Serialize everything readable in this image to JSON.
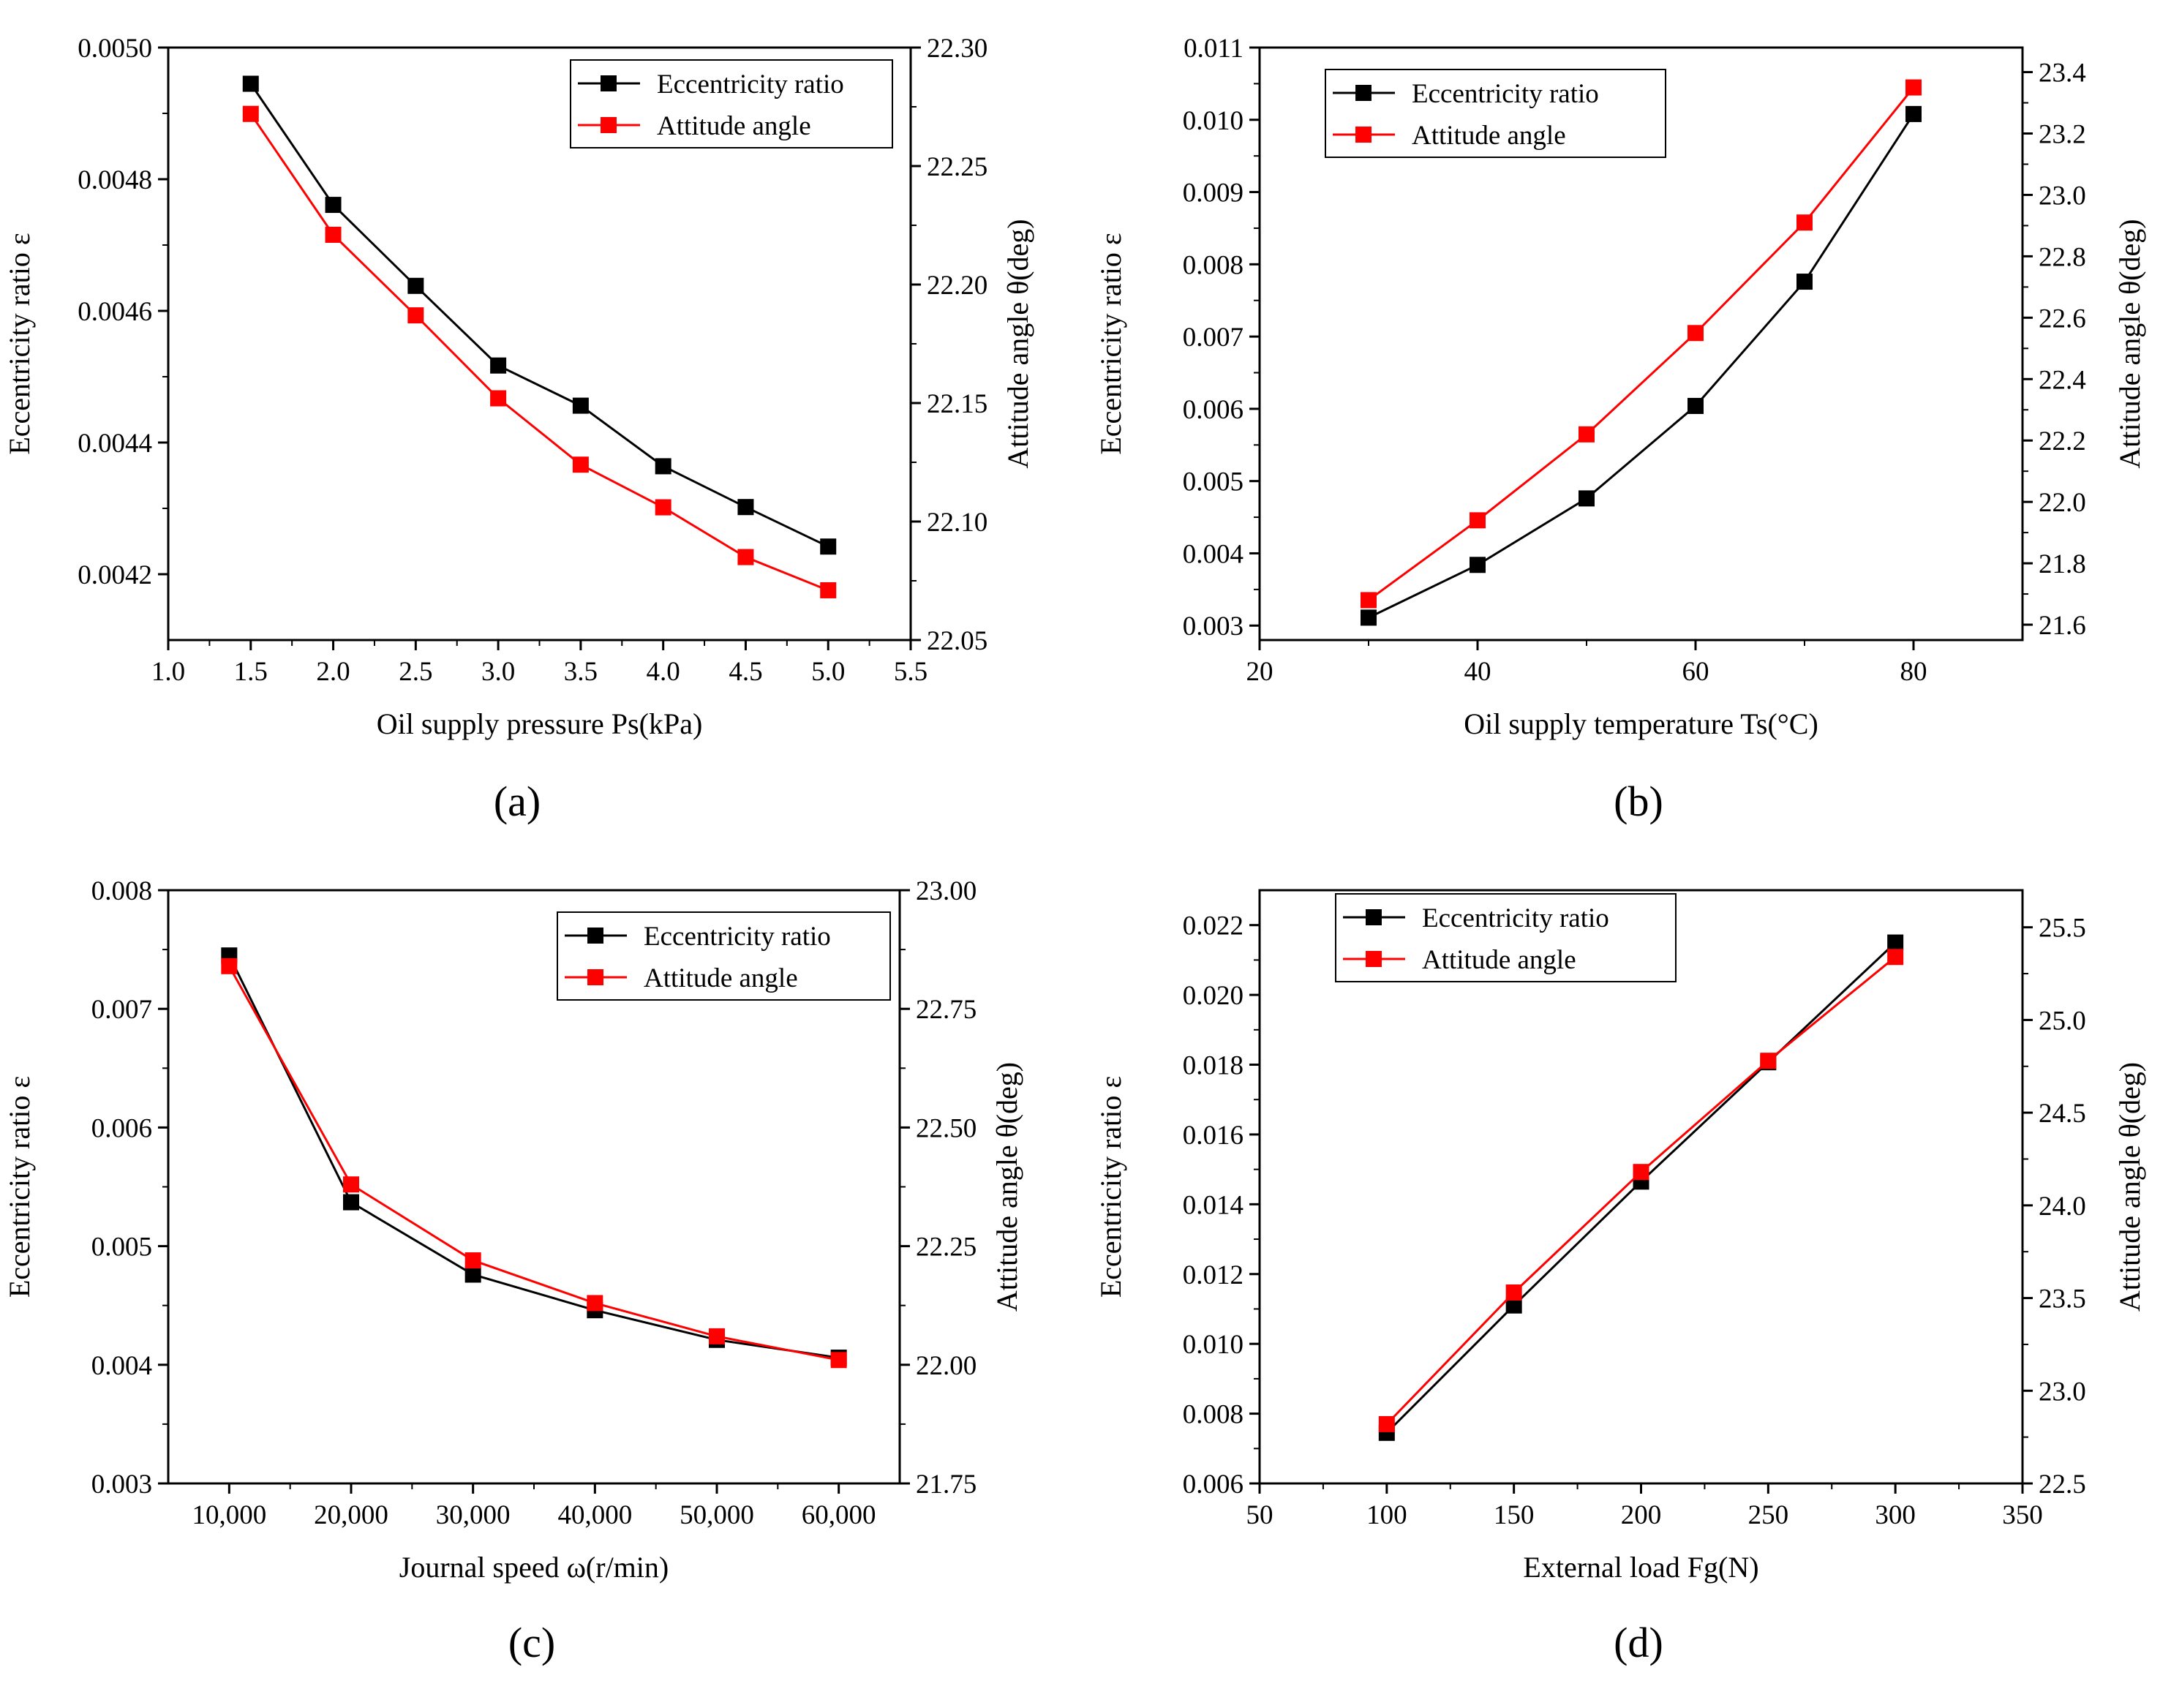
{
  "colors": {
    "eccentricity": "#000000",
    "attitude": "#ff0000"
  },
  "chart_data": [
    {
      "id": "a",
      "type": "line",
      "panel_label": "(a)",
      "legend_position": "top-right",
      "xlabel": "Oil supply pressure Ps(kPa)",
      "ylabel_left": "Eccentricity ratio ε",
      "ylabel_right": "Attitude angle θ(deg)",
      "x_ticks": [
        1.0,
        1.5,
        2.0,
        2.5,
        3.0,
        3.5,
        4.0,
        4.5,
        5.0,
        5.5
      ],
      "x_tick_labels": [
        "1.0",
        "1.5",
        "2.0",
        "2.5",
        "3.0",
        "3.5",
        "4.0",
        "4.5",
        "5.0",
        "5.5"
      ],
      "xlim": [
        1.0,
        5.5
      ],
      "yL_ticks": [
        0.0042,
        0.0044,
        0.0046,
        0.0048,
        0.005
      ],
      "yL_tick_labels": [
        "0.0042",
        "0.0044",
        "0.0046",
        "0.0048",
        "0.0050"
      ],
      "ylim_left": [
        0.0041,
        0.005
      ],
      "yR_ticks": [
        22.05,
        22.1,
        22.15,
        22.2,
        22.25,
        22.3
      ],
      "yR_tick_labels": [
        "22.05",
        "22.10",
        "22.15",
        "22.20",
        "22.25",
        "22.30"
      ],
      "ylim_right": [
        22.05,
        22.3
      ],
      "x": [
        1.5,
        2.0,
        2.5,
        3.0,
        3.5,
        4.0,
        4.5,
        5.0
      ],
      "series": [
        {
          "name": "Eccentricity ratio",
          "axis": "left",
          "values": [
            0.004945,
            0.004761,
            0.004638,
            0.004517,
            0.004456,
            0.004364,
            0.004302,
            0.004242
          ]
        },
        {
          "name": "Attitude angle",
          "axis": "right",
          "values": [
            22.272,
            22.221,
            22.187,
            22.152,
            22.124,
            22.106,
            22.085,
            22.071
          ]
        }
      ]
    },
    {
      "id": "b",
      "type": "line",
      "panel_label": "(b)",
      "legend_position": "top-left",
      "xlabel": "Oil supply temperature Ts(°C)",
      "ylabel_left": "Eccentricity ratio ε",
      "ylabel_right": "Attitude angle θ(deg)",
      "x_ticks": [
        20,
        40,
        60,
        80
      ],
      "x_tick_labels": [
        "20",
        "40",
        "60",
        "80"
      ],
      "xlim": [
        20,
        90
      ],
      "yL_ticks": [
        0.003,
        0.004,
        0.005,
        0.006,
        0.007,
        0.008,
        0.009,
        0.01,
        0.011
      ],
      "yL_tick_labels": [
        "0.003",
        "0.004",
        "0.005",
        "0.006",
        "0.007",
        "0.008",
        "0.009",
        "0.010",
        "0.011"
      ],
      "ylim_left": [
        0.0028,
        0.011
      ],
      "yR_ticks": [
        21.6,
        21.8,
        22.0,
        22.2,
        22.4,
        22.6,
        22.8,
        23.0,
        23.2,
        23.4
      ],
      "yR_tick_labels": [
        "21.6",
        "21.8",
        "22.0",
        "22.2",
        "22.4",
        "22.6",
        "22.8",
        "23.0",
        "23.2",
        "23.4"
      ],
      "ylim_right": [
        21.55,
        23.48
      ],
      "x": [
        30,
        40,
        50,
        60,
        70,
        80
      ],
      "series": [
        {
          "name": "Eccentricity ratio",
          "axis": "left",
          "values": [
            0.00311,
            0.00384,
            0.00476,
            0.00604,
            0.00776,
            0.01008
          ]
        },
        {
          "name": "Attitude angle",
          "axis": "right",
          "values": [
            21.68,
            21.94,
            22.22,
            22.55,
            22.91,
            23.35
          ]
        }
      ]
    },
    {
      "id": "c",
      "type": "line",
      "panel_label": "(c)",
      "legend_position": "top-right",
      "xlabel": "Journal speed ω(r/min)",
      "ylabel_left": "Eccentricity ratio ε",
      "ylabel_right": "Attitude angle θ(deg)",
      "x_ticks": [
        10000,
        20000,
        30000,
        40000,
        50000,
        60000
      ],
      "x_tick_labels": [
        "10,000",
        "20,000",
        "30,000",
        "40,000",
        "50,000",
        "60,000"
      ],
      "xlim": [
        5000,
        65000
      ],
      "yL_ticks": [
        0.003,
        0.004,
        0.005,
        0.006,
        0.007,
        0.008
      ],
      "yL_tick_labels": [
        "0.003",
        "0.004",
        "0.005",
        "0.006",
        "0.007",
        "0.008"
      ],
      "ylim_left": [
        0.003,
        0.008
      ],
      "yR_ticks": [
        21.75,
        22.0,
        22.25,
        22.5,
        22.75,
        23.0
      ],
      "yR_tick_labels": [
        "21.75",
        "22.00",
        "22.25",
        "22.50",
        "22.75",
        "23.00"
      ],
      "ylim_right": [
        21.75,
        23.0
      ],
      "x": [
        10000,
        20000,
        30000,
        40000,
        50000,
        60000
      ],
      "series": [
        {
          "name": "Eccentricity ratio",
          "axis": "left",
          "values": [
            0.00745,
            0.00537,
            0.00476,
            0.00446,
            0.00421,
            0.00406
          ]
        },
        {
          "name": "Attitude angle",
          "axis": "right",
          "values": [
            22.84,
            22.38,
            22.22,
            22.13,
            22.06,
            22.01
          ]
        }
      ]
    },
    {
      "id": "d",
      "type": "line",
      "panel_label": "(d)",
      "legend_position": "top-left",
      "xlabel": "External load Fg(N)",
      "ylabel_left": "Eccentricity ratio ε",
      "ylabel_right": "Attitude angle θ(deg)",
      "x_ticks": [
        50,
        100,
        150,
        200,
        250,
        300,
        350
      ],
      "x_tick_labels": [
        "50",
        "100",
        "150",
        "200",
        "250",
        "300",
        "350"
      ],
      "xlim": [
        50,
        350
      ],
      "yL_ticks": [
        0.006,
        0.008,
        0.01,
        0.012,
        0.014,
        0.016,
        0.018,
        0.02,
        0.022
      ],
      "yL_tick_labels": [
        "0.006",
        "0.008",
        "0.010",
        "0.012",
        "0.014",
        "0.016",
        "0.018",
        "0.020",
        "0.022"
      ],
      "ylim_left": [
        0.006,
        0.023
      ],
      "yR_ticks": [
        22.5,
        23.0,
        23.5,
        24.0,
        24.5,
        25.0,
        25.5
      ],
      "yR_tick_labels": [
        "22.5",
        "23.0",
        "23.5",
        "24.0",
        "24.5",
        "25.0",
        "25.5"
      ],
      "ylim_right": [
        22.5,
        25.7
      ],
      "x": [
        100,
        150,
        200,
        250,
        300
      ],
      "series": [
        {
          "name": "Eccentricity ratio",
          "axis": "left",
          "values": [
            0.00745,
            0.0111,
            0.01465,
            0.01807,
            0.0215
          ]
        },
        {
          "name": "Attitude angle",
          "axis": "right",
          "values": [
            22.82,
            23.53,
            24.18,
            24.78,
            25.34
          ]
        }
      ]
    }
  ]
}
